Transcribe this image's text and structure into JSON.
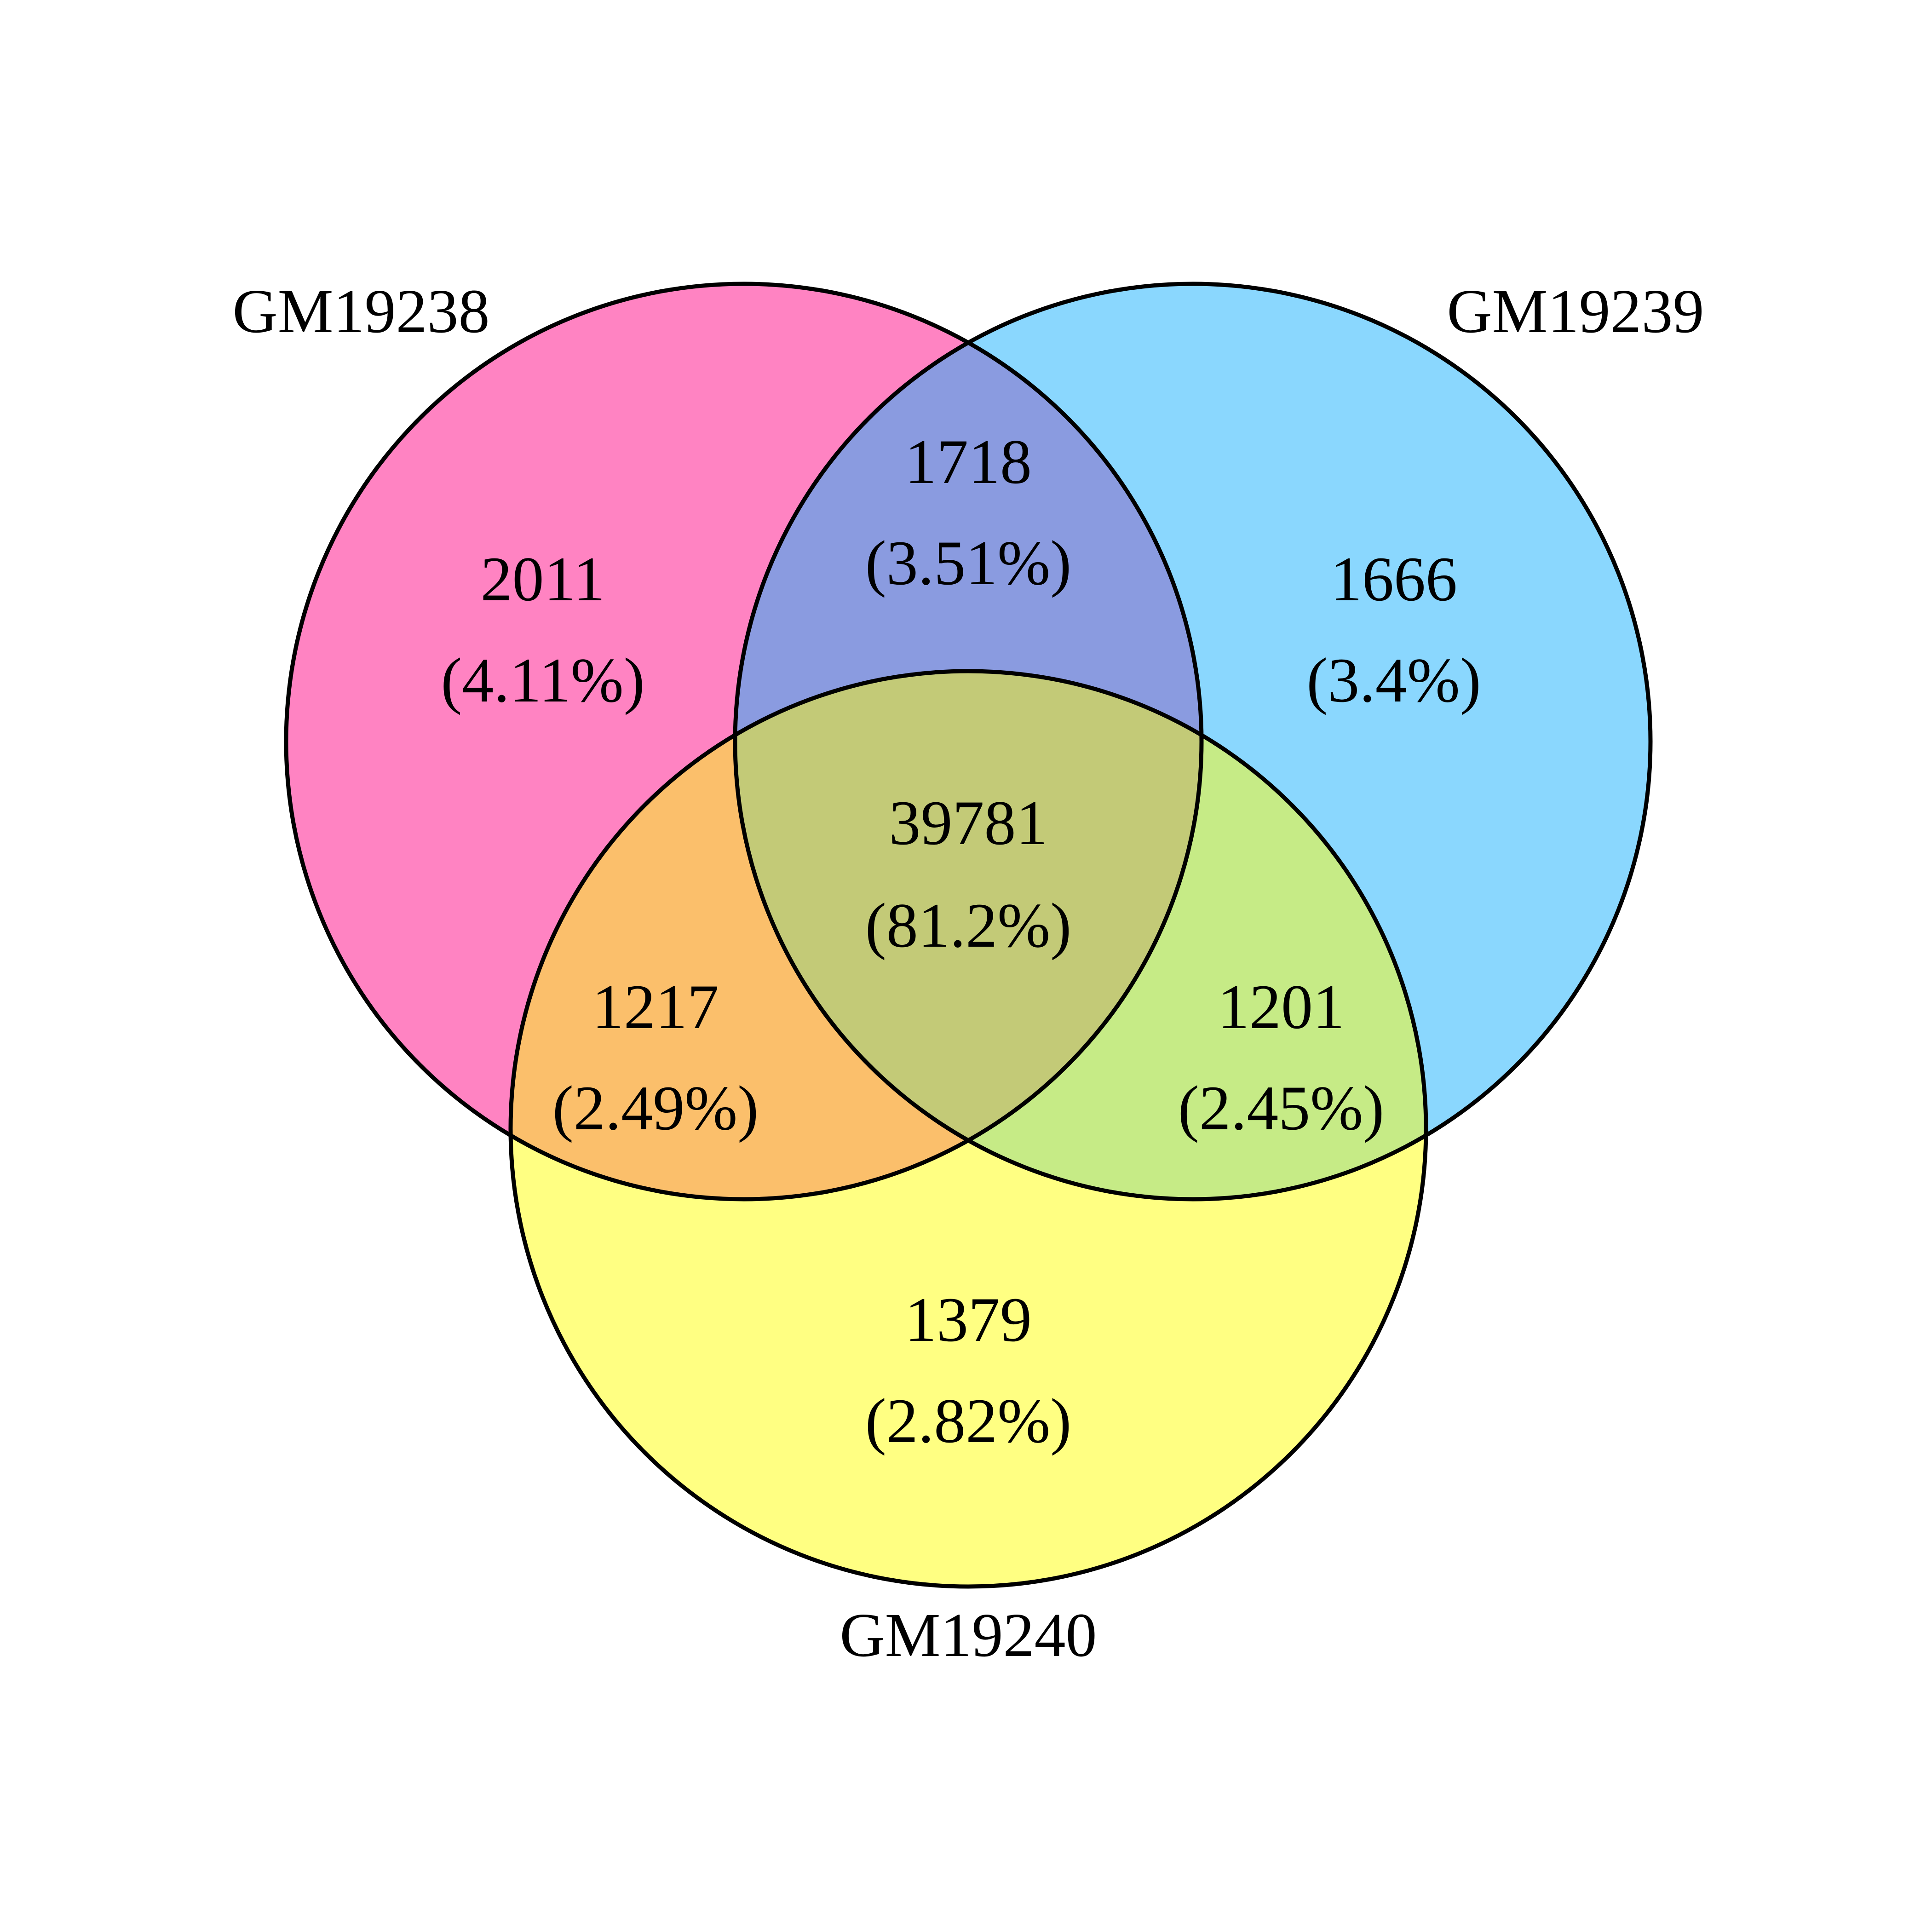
{
  "sets": [
    {
      "id": "a",
      "label": "GM19238",
      "color": "#FF83C2"
    },
    {
      "id": "b",
      "label": "GM19239",
      "color": "#8AD7FE"
    },
    {
      "id": "c",
      "label": "GM19240",
      "color": "#FFFF82"
    }
  ],
  "regions": {
    "a_only": {
      "count": "2011",
      "percent": "(4.11%)",
      "color": "#FF83C2"
    },
    "b_only": {
      "count": "1666",
      "percent": "(3.4%)",
      "color": "#8AD7FE"
    },
    "c_only": {
      "count": "1379",
      "percent": "(2.82%)",
      "color": "#FFFF82"
    },
    "ab": {
      "count": "1718",
      "percent": "(3.51%)",
      "color": "#8A9BE0"
    },
    "ac": {
      "count": "1217",
      "percent": "(2.49%)",
      "color": "#FBBF6B"
    },
    "bc": {
      "count": "1201",
      "percent": "(2.45%)",
      "color": "#C6EB86"
    },
    "abc": {
      "count": "39781",
      "percent": "(81.2%)",
      "color": "#C3CA77"
    }
  }
}
